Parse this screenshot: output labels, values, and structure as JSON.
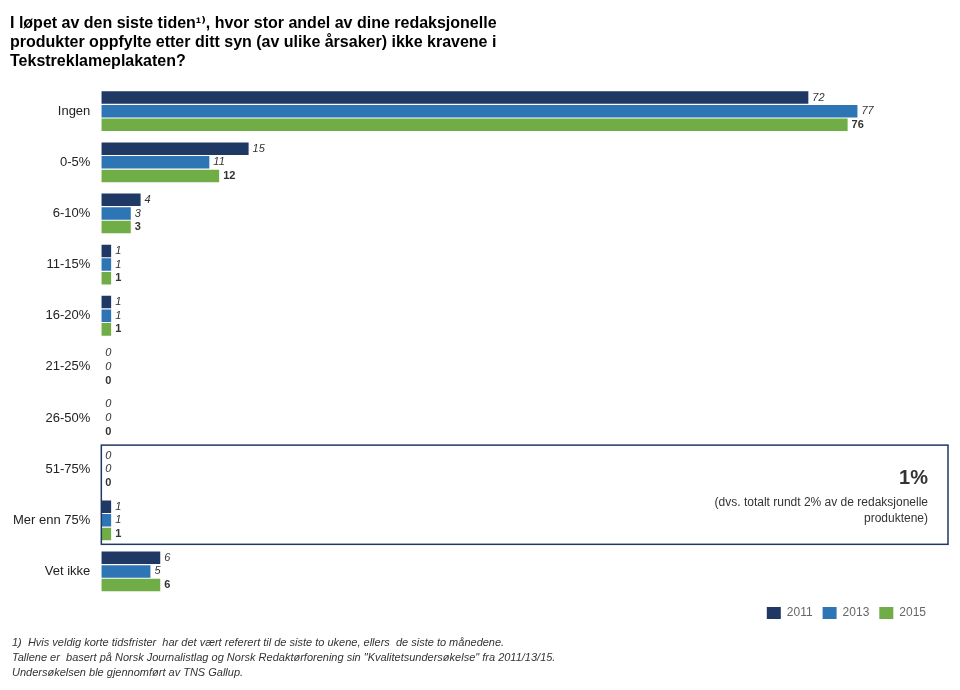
{
  "chart_data": {
    "type": "bar",
    "orientation": "horizontal",
    "title": [
      "I løpet av den siste tiden¹⁾, hvor stor andel av dine redaksjonelle",
      "produkter oppfylte etter ditt syn (av ulike årsaker) ikke kravene i",
      "Tekstreklameplakaten?"
    ],
    "categories": [
      "Ingen",
      "0-5%",
      "6-10%",
      "11-15%",
      "16-20%",
      "21-25%",
      "26-50%",
      "51-75%",
      "Mer enn 75%",
      "Vet ikke"
    ],
    "series": [
      {
        "name": "2011",
        "color": "#1f3864",
        "values": [
          72,
          15,
          4,
          1,
          1,
          0,
          0,
          0,
          1,
          6
        ]
      },
      {
        "name": "2013",
        "color": "#2e75b6",
        "values": [
          77,
          11,
          3,
          1,
          1,
          0,
          0,
          0,
          1,
          5
        ]
      },
      {
        "name": "2015",
        "color": "#70ad47",
        "values": [
          76,
          12,
          3,
          1,
          1,
          0,
          0,
          0,
          1,
          6
        ]
      }
    ],
    "xlim": [
      0,
      85
    ],
    "tick_labels": "y",
    "grid": false,
    "legend": "lower right",
    "data_labels": true,
    "annotations": [
      {
        "text": [
          "1%",
          "(dvs. totalt rundt 2% av de redaksjonelle",
          "produktene)"
        ],
        "categories": [
          "51-75%",
          "Mer enn 75%"
        ]
      }
    ],
    "footnotes": [
      "1)  Hvis veldig korte tidsfrister  har det vært referert til de siste to ukene, ellers  de siste to månedene.",
      "Tallene er  basert på Norsk Journalistlag og Norsk Redaktørforening sin \"Kvalitetsundersøkelse\" fra 2011/13/15.",
      "Undersøkelsen ble gjennomført av TNS Gallup."
    ]
  }
}
